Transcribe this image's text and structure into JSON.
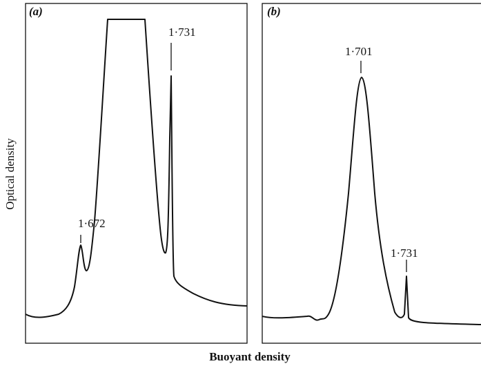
{
  "figure": {
    "y_axis_label": "Optical density",
    "x_axis_label": "Buoyant density",
    "panels": [
      {
        "label": "(a)",
        "peaks": [
          "1·672",
          "1·731"
        ]
      },
      {
        "label": "(b)",
        "peaks": [
          "1·701",
          "1·731"
        ]
      }
    ]
  }
}
